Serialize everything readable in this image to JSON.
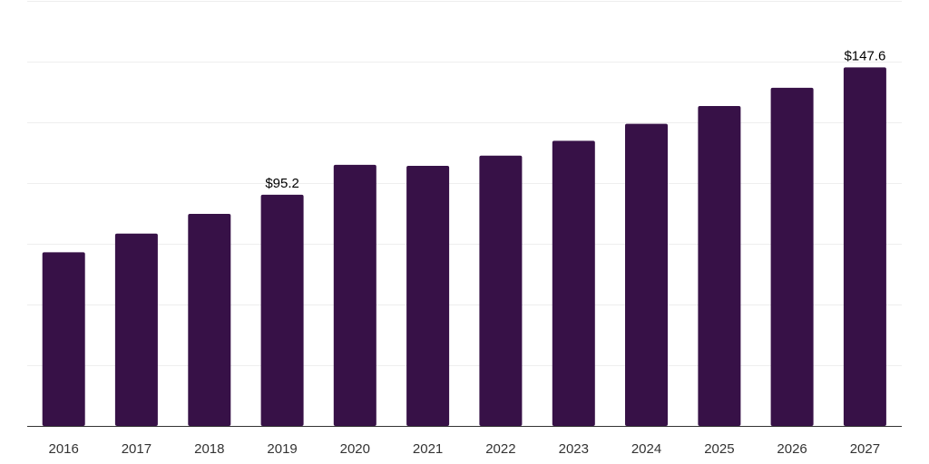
{
  "chart_data": {
    "type": "bar",
    "title": "",
    "xlabel": "",
    "ylabel": "",
    "categories": [
      "2016",
      "2017",
      "2018",
      "2019",
      "2020",
      "2021",
      "2022",
      "2023",
      "2024",
      "2025",
      "2026",
      "2027"
    ],
    "values": [
      71.5,
      79.2,
      87.3,
      95.2,
      107.5,
      107.1,
      111.3,
      117.4,
      124.4,
      131.7,
      139.2,
      147.6
    ],
    "ylim": [
      0,
      175
    ],
    "y_gridline_step": 25,
    "grid": true,
    "y_tick_labels_shown": false,
    "data_labels": [
      {
        "category": "2019",
        "text": "$95.2"
      },
      {
        "category": "2027",
        "text": "$147.6"
      }
    ],
    "colors": {
      "bar": "#371147",
      "gridline": "#eeeeee",
      "baseline": "#333333",
      "tick_text": "#333333",
      "label_text": "#000000"
    }
  }
}
